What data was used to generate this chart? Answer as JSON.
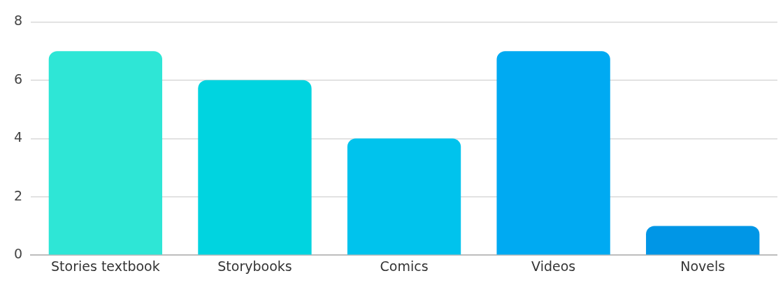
{
  "chart_data": {
    "type": "bar",
    "categories": [
      "Stories textbook",
      "Storybooks",
      "Comics",
      "Videos",
      "Novels"
    ],
    "values": [
      7,
      6,
      4,
      7,
      1
    ],
    "colors": [
      "#2ee6d6",
      "#00d4e0",
      "#00c3ed",
      "#00aaf2",
      "#0096e6"
    ],
    "ylim": [
      0,
      8
    ],
    "yticks": [
      0,
      2,
      4,
      6,
      8
    ],
    "grid": "y",
    "legend": false
  }
}
